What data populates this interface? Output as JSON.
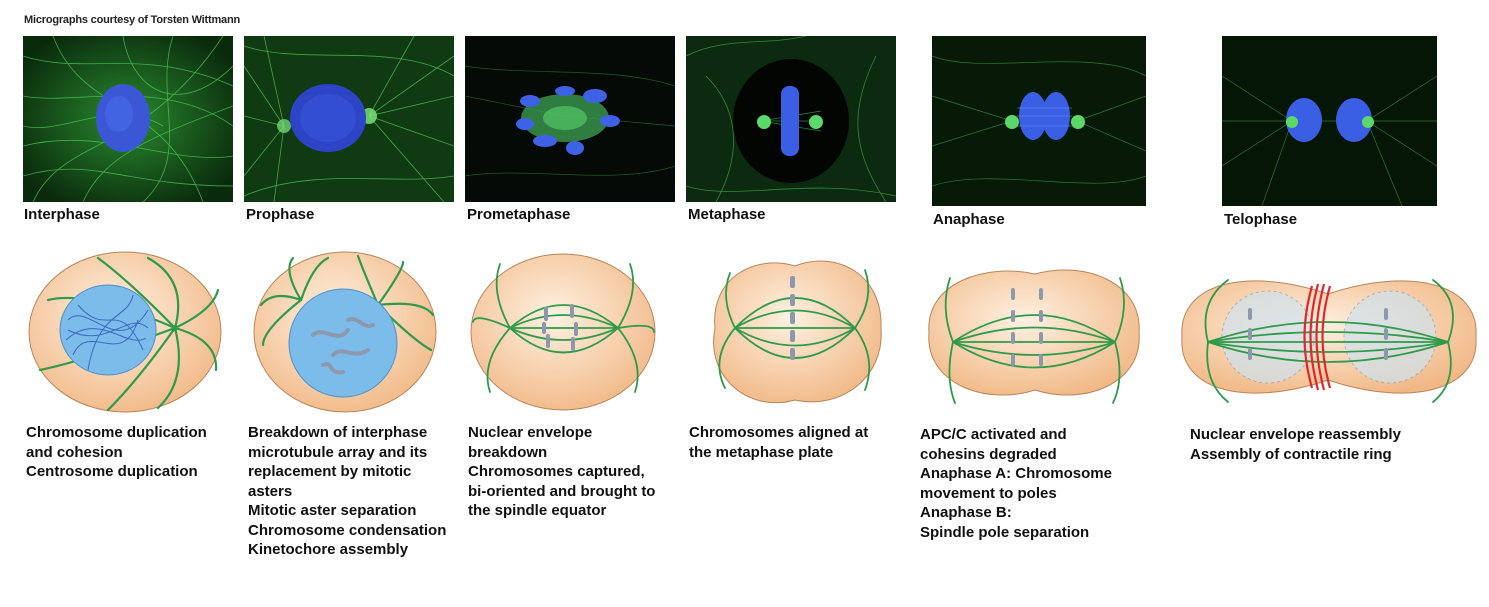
{
  "credit": "Micrographs courtesy of Torsten Wittmann",
  "phases": [
    {
      "name": "Interphase",
      "description": [
        "Chromosome duplication",
        "and cohesion",
        "Centrosome duplication"
      ]
    },
    {
      "name": "Prophase",
      "description": [
        "Breakdown of interphase",
        "microtubule array and its",
        "replacement by mitotic",
        "asters",
        "Mitotic aster separation",
        "Chromosome condensation",
        "Kinetochore assembly"
      ]
    },
    {
      "name": "Prometaphase",
      "description": [
        "Nuclear envelope",
        "breakdown",
        "Chromosomes captured,",
        "bi-oriented and brought to",
        "the spindle equator"
      ]
    },
    {
      "name": "Metaphase",
      "description": [
        "Chromosomes aligned at",
        "the metaphase plate"
      ]
    },
    {
      "name": "Anaphase",
      "description": [
        "APC/C activated and",
        "cohesins degraded",
        "Anaphase A: Chromosome",
        "movement to poles",
        "Anaphase B:",
        "Spindle pole separation"
      ]
    },
    {
      "name": "Telophase",
      "description": [
        "Nuclear envelope reassembly",
        "Assembly of contractile ring"
      ]
    }
  ],
  "colors": {
    "microtubule": "#2f9a4a",
    "cytoplasm": "#f6c89a",
    "nucleus": "#6fb3e6",
    "chromosome": "#9aa9c4",
    "contractile_ring": "#e2262b",
    "micro_green": "#3cc24a",
    "micro_blue": "#3a5fe0"
  }
}
